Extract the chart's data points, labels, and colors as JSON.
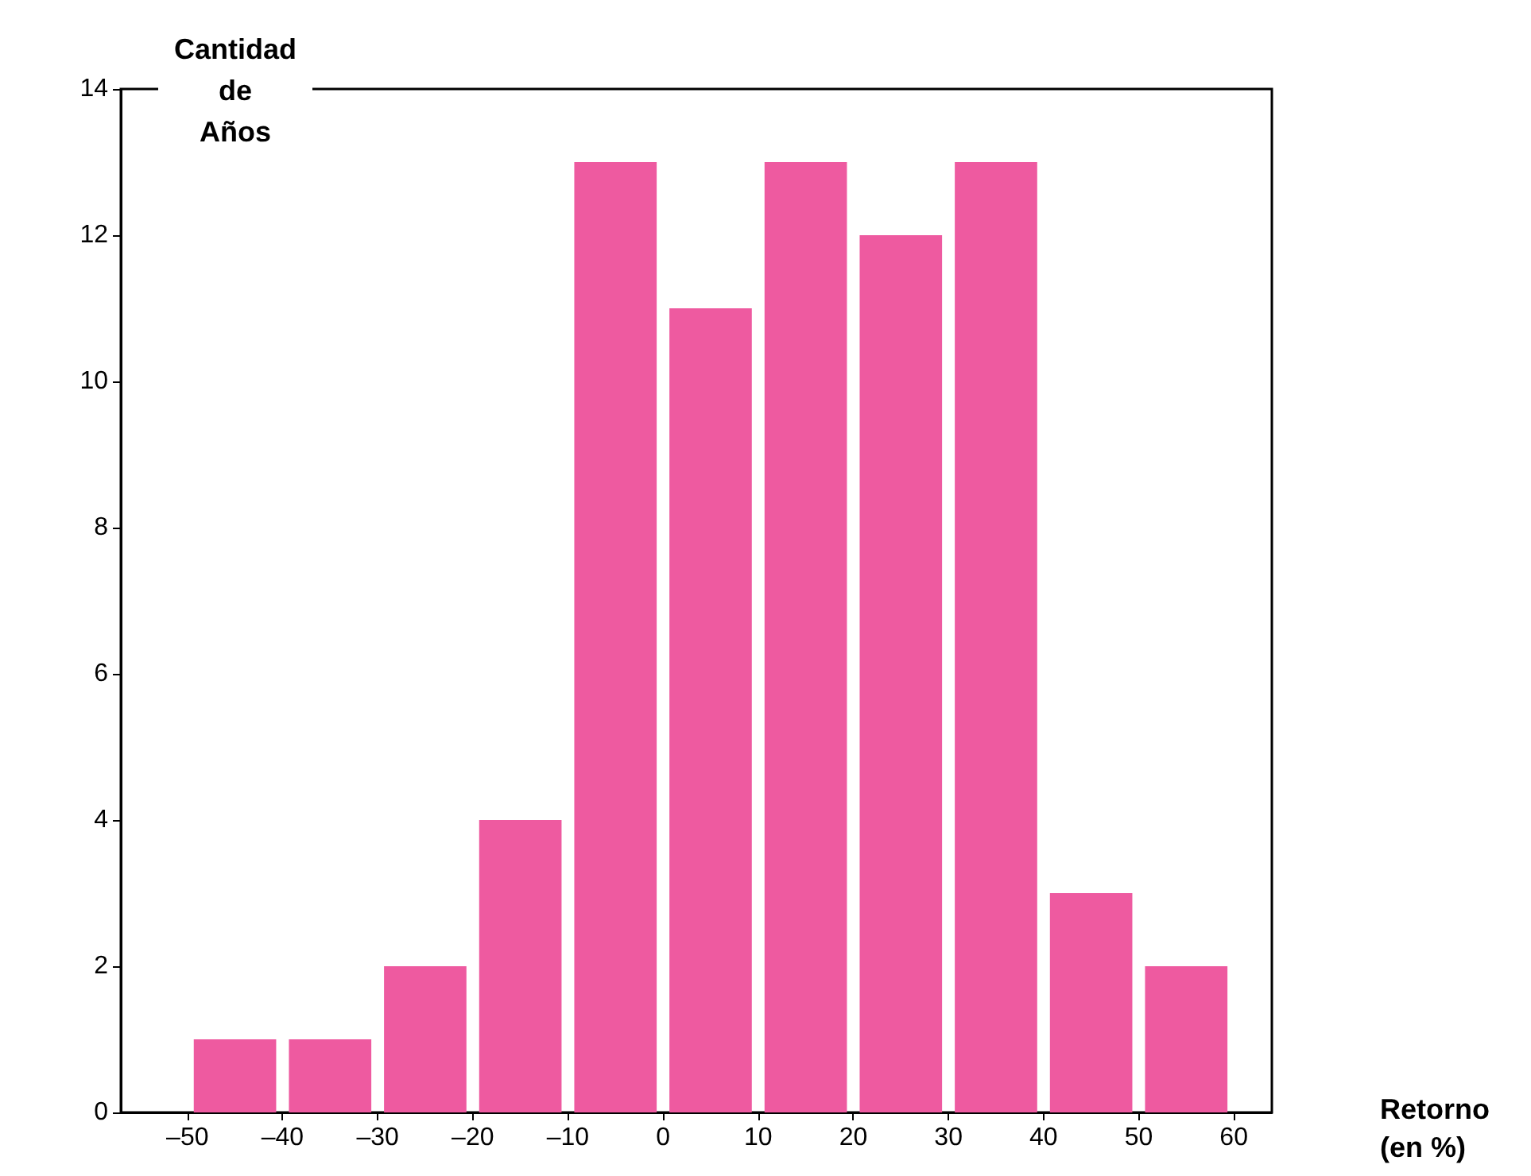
{
  "chart_data": {
    "type": "histogram",
    "ylabel": "Cantidad de Años",
    "xlabel": "Retorno (en %)",
    "bins": [
      -50,
      -40,
      -30,
      -20,
      -10,
      0,
      10,
      20,
      30,
      40,
      50,
      60
    ],
    "values": [
      1,
      1,
      2,
      4,
      13,
      11,
      13,
      12,
      13,
      3,
      2
    ],
    "color": "#ee5aa0",
    "xlim": [
      -57,
      64
    ],
    "xticks": [
      {
        "value": -50,
        "label": "–50"
      },
      {
        "value": -40,
        "label": "–40"
      },
      {
        "value": -30,
        "label": "–30"
      },
      {
        "value": -20,
        "label": "–20"
      },
      {
        "value": -10,
        "label": "–10"
      },
      0,
      10,
      20,
      30,
      40,
      50,
      60
    ],
    "ylim": [
      0,
      14
    ],
    "yticks": [
      0,
      2,
      4,
      6,
      8,
      10,
      12,
      14
    ],
    "grid": false
  }
}
